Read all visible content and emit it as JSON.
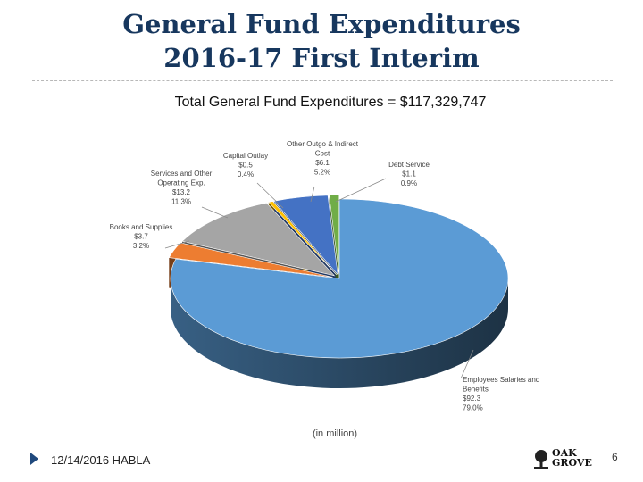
{
  "slide": {
    "title_line1": "General Fund Expenditures",
    "title_line2": "2016-17 First Interim",
    "subtitle": "Total General Fund Expenditures = $117,329,747",
    "footer_date": "12/14/2016 HABLA",
    "page_number": "6",
    "logo": {
      "line1": "OAK",
      "line2": "GROVE"
    }
  },
  "chart_data": {
    "type": "pie",
    "note": "(in million)",
    "slices": [
      {
        "label_lines": [
          "Employees Salaries and",
          "Benefits"
        ],
        "value": 92.3,
        "value_label": "$92.3",
        "percent": 79.0,
        "percent_label": "79.0%",
        "color": "#5b9bd5"
      },
      {
        "label_lines": [
          "Books and Supplies"
        ],
        "value": 3.7,
        "value_label": "$3.7",
        "percent": 3.2,
        "percent_label": "3.2%",
        "color": "#ed7d31"
      },
      {
        "label_lines": [
          "Services and Other",
          "Operating Exp."
        ],
        "value": 13.2,
        "value_label": "$13.2",
        "percent": 11.3,
        "percent_label": "11.3%",
        "color": "#a5a5a5"
      },
      {
        "label_lines": [
          "Capital Outlay"
        ],
        "value": 0.5,
        "value_label": "$0.5",
        "percent": 0.4,
        "percent_label": "0.4%",
        "color": "#ffc000"
      },
      {
        "label_lines": [
          "Other Outgo & Indirect",
          "Cost"
        ],
        "value": 6.1,
        "value_label": "$6.1",
        "percent": 5.2,
        "percent_label": "5.2%",
        "color": "#4472c4"
      },
      {
        "label_lines": [
          "Debt Service"
        ],
        "value": 1.1,
        "value_label": "$1.1",
        "percent": 0.9,
        "percent_label": "0.9%",
        "color": "#70ad47"
      }
    ]
  }
}
